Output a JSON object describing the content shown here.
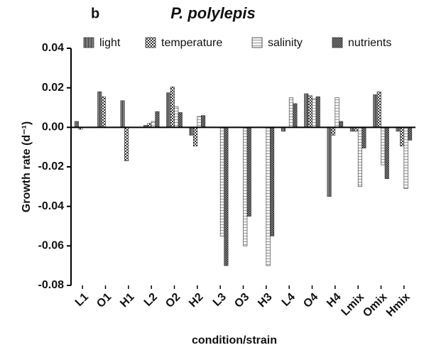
{
  "chart_data": {
    "type": "bar",
    "panel_label": "b",
    "title": "P. polylepis",
    "x_label": "condition/strain",
    "y_label": "Growth rate (d⁻¹)",
    "categories": [
      "L1",
      "O1",
      "H1",
      "L2",
      "O2",
      "H2",
      "L3",
      "O3",
      "H3",
      "L4",
      "O4",
      "H4",
      "Lmix",
      "Omix",
      "Hmix"
    ],
    "series": [
      {
        "name": "light",
        "color": "#7a7a7a",
        "values": [
          0.003,
          0.018,
          0.0135,
          0.001,
          0.0175,
          -0.004,
          0,
          0,
          0,
          -0.002,
          0.017,
          -0.035,
          -0.002,
          0.0165,
          -0.002
        ]
      },
      {
        "name": "temperature",
        "color": "#c4c4c4",
        "values": [
          -0.001,
          0.0155,
          -0.017,
          0.002,
          0.0205,
          -0.0095,
          0,
          0,
          0,
          0,
          0.016,
          -0.004,
          -0.002,
          0.018,
          -0.0095
        ]
      },
      {
        "name": "salinity",
        "color": "#f4f4f4",
        "values": [
          0,
          0,
          0,
          0.003,
          0.0105,
          0.0055,
          -0.055,
          -0.06,
          -0.07,
          0.015,
          0.0145,
          0.015,
          -0.03,
          -0.019,
          -0.031
        ]
      },
      {
        "name": "nutrients",
        "color": "#9a9a9a",
        "values": [
          0,
          0,
          0,
          0.008,
          0.0075,
          0.006,
          -0.07,
          -0.045,
          -0.055,
          0.012,
          0.0155,
          0.003,
          -0.0105,
          -0.026,
          -0.0065
        ]
      }
    ],
    "ylim": [
      -0.08,
      0.04
    ],
    "yticks": [
      0.04,
      0.02,
      {
        "value": 0,
        "label": "0.00"
      },
      -0.02,
      -0.04,
      -0.06,
      -0.08
    ]
  }
}
